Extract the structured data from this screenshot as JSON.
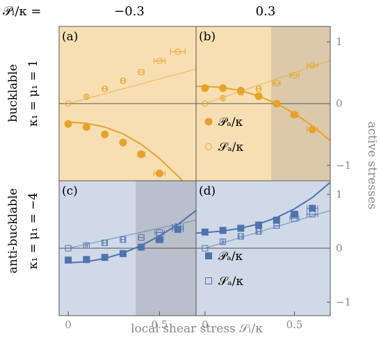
{
  "header": {
    "param_label": "𝒫ₗ/κ =",
    "col_values": [
      "−0.3",
      "0.3"
    ]
  },
  "row_labels": [
    {
      "line1": "bucklable",
      "line2": "κ₁ = μ₁ = 1"
    },
    {
      "line1": "anti-bucklable",
      "line2": "κ₁ = μ₁ = −4"
    }
  ],
  "xlabel": "local shear stress 𝒮ₗ/κ",
  "ylabel_right": "active stresses",
  "x_ticks": [
    "0",
    "0.5"
  ],
  "y_ticks": [
    "1",
    "0",
    "−1"
  ],
  "legend": [
    {
      "label": "𝒫ₐ/κ",
      "style": "filled"
    },
    {
      "label": "𝒮ₐ/κ",
      "style": "open"
    }
  ],
  "colors": {
    "orange": "#e6a22a",
    "orange_bg": "#f8dfb3",
    "orange_shade": "#dcc9aa",
    "blue": "#4f73ad",
    "blue_bg": "#cfd9e8",
    "blue_shade": "#b9bfcb",
    "axis": "#444444",
    "tick_label": "#888888"
  },
  "chart_data": [
    {
      "id": "a",
      "panel_label": "(a)",
      "type": "scatter",
      "marker": "circle",
      "color": "orange",
      "xlim": [
        -0.05,
        0.7
      ],
      "ylim": [
        -1.25,
        1.25
      ],
      "shaded_from": null,
      "series": [
        {
          "name": "𝒫ₐ/κ",
          "style": "filled",
          "x": [
            0,
            0.1,
            0.2,
            0.3,
            0.4,
            0.5
          ],
          "y": [
            -0.33,
            -0.38,
            -0.5,
            -0.63,
            -0.82,
            -1.13
          ],
          "xerr": [
            0,
            0,
            0,
            0.01,
            0.02,
            0.03
          ]
        },
        {
          "name": "𝒮ₐ/κ",
          "style": "open",
          "x": [
            0,
            0.1,
            0.2,
            0.3,
            0.4,
            0.5,
            0.6
          ],
          "y": [
            0,
            0.11,
            0.24,
            0.37,
            0.51,
            0.69,
            0.84
          ],
          "xerr": [
            0,
            0.005,
            0.01,
            0.01,
            0.015,
            0.03,
            0.04
          ]
        }
      ],
      "fits": [
        {
          "series": "𝒮ₐ/κ",
          "x": [
            0,
            0.7
          ],
          "y": [
            0,
            0.56
          ]
        },
        {
          "series": "𝒫ₐ/κ",
          "x": [
            0,
            0.1,
            0.2,
            0.3,
            0.4,
            0.5,
            0.6,
            0.65
          ],
          "y": [
            -0.3,
            -0.32,
            -0.38,
            -0.49,
            -0.66,
            -0.89,
            -1.17,
            -1.33
          ]
        }
      ]
    },
    {
      "id": "b",
      "panel_label": "(b)",
      "type": "scatter",
      "marker": "circle",
      "color": "orange",
      "xlim": [
        -0.05,
        0.7
      ],
      "ylim": [
        -1.25,
        1.25
      ],
      "shaded_from": 0.37,
      "series": [
        {
          "name": "𝒫ₐ/κ",
          "style": "filled",
          "x": [
            0,
            0.1,
            0.2,
            0.3,
            0.4,
            0.5,
            0.6
          ],
          "y": [
            0.25,
            0.25,
            0.21,
            0.12,
            0.0,
            -0.18,
            -0.42
          ],
          "xerr": [
            0,
            0,
            0,
            0.01,
            0.015,
            0.02,
            0.03
          ]
        },
        {
          "name": "𝒮ₐ/κ",
          "style": "open",
          "x": [
            0,
            0.1,
            0.2,
            0.3,
            0.4,
            0.5,
            0.6
          ],
          "y": [
            0,
            0.09,
            0.18,
            0.24,
            0.33,
            0.46,
            0.62
          ],
          "xerr": [
            0,
            0.005,
            0.01,
            0.01,
            0.02,
            0.025,
            0.03
          ]
        }
      ],
      "fits": [
        {
          "series": "𝒮ₐ/κ",
          "x": [
            0,
            0.7
          ],
          "y": [
            0,
            0.7
          ]
        },
        {
          "series": "𝒫ₐ/κ",
          "x": [
            -0.05,
            0,
            0.1,
            0.2,
            0.3,
            0.4,
            0.5,
            0.6,
            0.7
          ],
          "y": [
            0.28,
            0.28,
            0.26,
            0.21,
            0.12,
            0.0,
            -0.16,
            -0.36,
            -0.6
          ]
        }
      ]
    },
    {
      "id": "c",
      "panel_label": "(c)",
      "type": "scatter",
      "marker": "square",
      "color": "blue",
      "xlim": [
        -0.05,
        0.7
      ],
      "ylim": [
        -1.25,
        1.25
      ],
      "shaded_from": 0.37,
      "series": [
        {
          "name": "𝒫ₐ/κ",
          "style": "filled",
          "x": [
            0,
            0.1,
            0.2,
            0.3,
            0.4,
            0.5,
            0.6
          ],
          "y": [
            -0.22,
            -0.21,
            -0.17,
            -0.1,
            0.02,
            0.16,
            0.35
          ],
          "xerr": [
            0,
            0,
            0,
            0.01,
            0.015,
            0.02,
            0.03
          ]
        },
        {
          "name": "𝒮ₐ/κ",
          "style": "open",
          "x": [
            0,
            0.1,
            0.2,
            0.3,
            0.4,
            0.5,
            0.6
          ],
          "y": [
            0,
            0.05,
            0.1,
            0.16,
            0.2,
            0.29,
            0.4
          ],
          "xerr": [
            0,
            0.005,
            0.01,
            0.01,
            0.015,
            0.025,
            0.03
          ]
        }
      ],
      "fits": [
        {
          "series": "𝒮ₐ/κ",
          "x": [
            0,
            0.7
          ],
          "y": [
            0,
            0.52
          ]
        },
        {
          "series": "𝒫ₐ/κ",
          "x": [
            0,
            0.1,
            0.2,
            0.3,
            0.4,
            0.5,
            0.6,
            0.7
          ],
          "y": [
            -0.27,
            -0.25,
            -0.19,
            -0.09,
            0.05,
            0.23,
            0.44,
            0.7
          ]
        }
      ]
    },
    {
      "id": "d",
      "panel_label": "(d)",
      "type": "scatter",
      "marker": "square",
      "color": "blue",
      "xlim": [
        -0.05,
        0.7
      ],
      "ylim": [
        -1.25,
        1.25
      ],
      "shaded_from": null,
      "series": [
        {
          "name": "𝒫ₐ/κ",
          "style": "filled",
          "x": [
            0,
            0.1,
            0.2,
            0.3,
            0.4,
            0.5,
            0.6
          ],
          "y": [
            0.3,
            0.33,
            0.37,
            0.43,
            0.52,
            0.63,
            0.74
          ],
          "xerr": [
            0,
            0,
            0.005,
            0.01,
            0.015,
            0.02,
            0.03
          ]
        },
        {
          "name": "𝒮ₐ/κ",
          "style": "open",
          "x": [
            0,
            0.1,
            0.2,
            0.3,
            0.4,
            0.5,
            0.6
          ],
          "y": [
            0,
            0.12,
            0.22,
            0.31,
            0.42,
            0.55,
            0.63
          ],
          "xerr": [
            0,
            0.005,
            0.01,
            0.01,
            0.015,
            0.025,
            0.03
          ]
        }
      ],
      "fits": [
        {
          "series": "𝒮ₐ/κ",
          "x": [
            0,
            0.7
          ],
          "y": [
            0,
            0.7
          ]
        },
        {
          "series": "𝒫ₐ/κ",
          "x": [
            -0.05,
            0,
            0.1,
            0.2,
            0.3,
            0.4,
            0.5,
            0.6,
            0.7
          ],
          "y": [
            0.28,
            0.29,
            0.32,
            0.37,
            0.45,
            0.57,
            0.73,
            0.94,
            1.22
          ]
        }
      ]
    }
  ]
}
